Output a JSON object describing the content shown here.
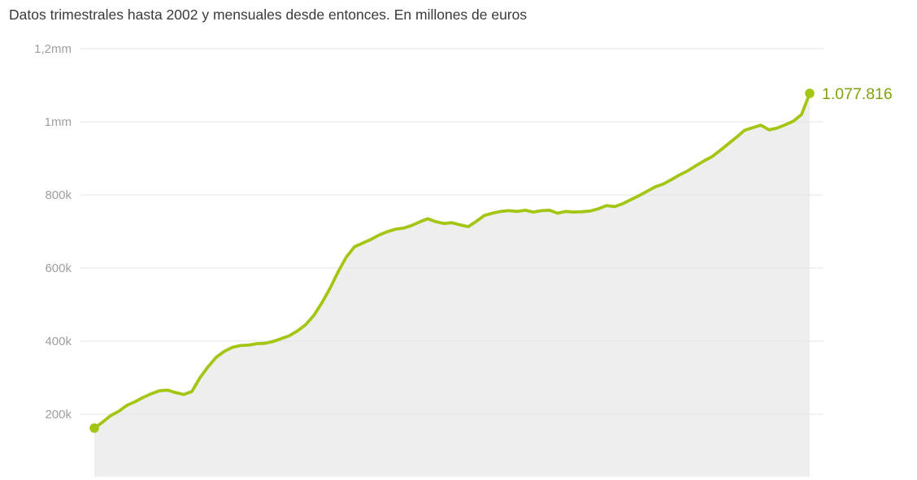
{
  "title": "Datos trimestrales hasta 2002 y mensuales desde entonces. En millones de euros",
  "chart_data": {
    "type": "area",
    "title": "Datos trimestrales hasta 2002 y mensuales desde entonces. En millones de euros",
    "ylabel": "",
    "xlabel": "",
    "unit": "millones de euros",
    "grid": true,
    "legend": false,
    "x_axis_labels_visible": false,
    "ylim": [
      0,
      1200000
    ],
    "y_ticks": [
      {
        "label": "1,2mm",
        "value": 1200000
      },
      {
        "label": "1mm",
        "value": 1000000
      },
      {
        "label": "800k",
        "value": 800000
      },
      {
        "label": "600k",
        "value": 600000
      },
      {
        "label": "400k",
        "value": 400000
      },
      {
        "label": "200k",
        "value": 200000
      }
    ],
    "last_value": 1077816,
    "last_value_label": "1.077.816",
    "first_value": 162000,
    "values": [
      162000,
      178000,
      196000,
      208000,
      224000,
      234000,
      246000,
      256000,
      264000,
      266000,
      259000,
      254000,
      262000,
      300000,
      330000,
      356000,
      372000,
      383000,
      388000,
      389000,
      393000,
      394000,
      399000,
      407000,
      415000,
      428000,
      445000,
      470000,
      505000,
      545000,
      590000,
      630000,
      658000,
      668000,
      678000,
      690000,
      699000,
      706000,
      709000,
      716000,
      726000,
      735000,
      727000,
      722000,
      724000,
      718000,
      713000,
      728000,
      744000,
      750000,
      755000,
      757000,
      755000,
      758000,
      753000,
      757000,
      758000,
      750000,
      755000,
      753000,
      754000,
      756000,
      762000,
      771000,
      768000,
      776000,
      787000,
      798000,
      810000,
      822000,
      830000,
      842000,
      855000,
      866000,
      880000,
      893000,
      905000,
      922000,
      940000,
      958000,
      977000,
      984000,
      991000,
      978000,
      983000,
      992000,
      1002000,
      1020000,
      1077816
    ],
    "colors": {
      "line": "#a3c614",
      "marker": "#a3c614",
      "area": "#eeeeee",
      "grid": "#e4e4e4",
      "tick_text": "#9e9e9e",
      "end_label_text": "#7ea30b",
      "title_text": "#3a3a3a"
    }
  }
}
